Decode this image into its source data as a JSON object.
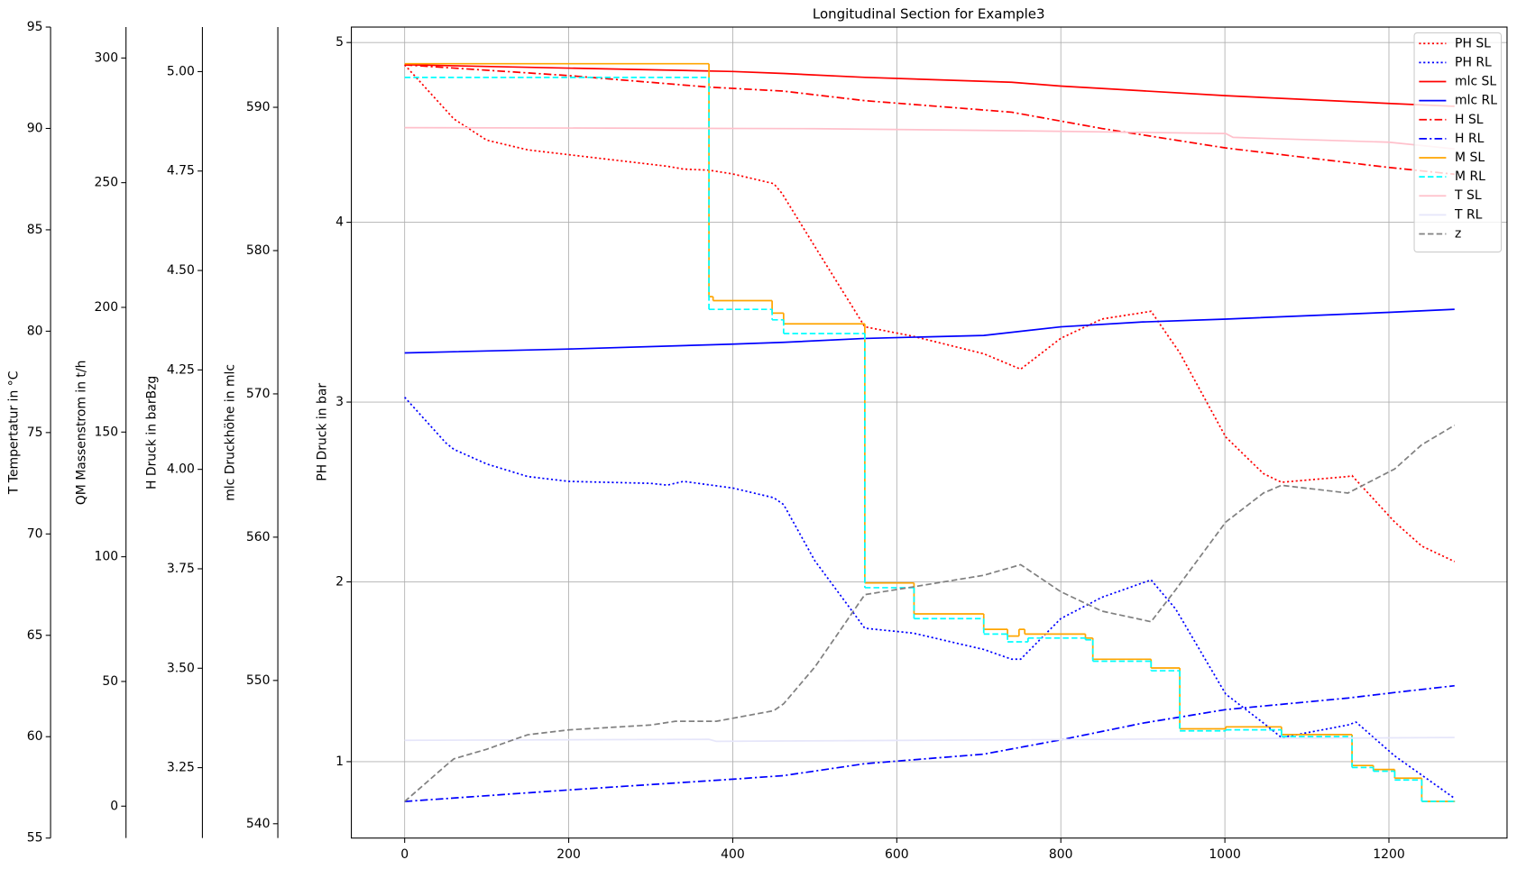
{
  "chart_data": {
    "type": "line",
    "title": "Longitudinal Section for Example3",
    "ylabel": "PH Druck in bar",
    "xlim": [
      -65,
      1344
    ],
    "xticks": [
      0,
      200,
      400,
      600,
      800,
      1000,
      1200
    ],
    "ylim": [
      0.575,
      5.086
    ],
    "yticks": [
      1,
      2,
      3,
      4,
      5
    ],
    "grid": true,
    "legend": "upper right",
    "extra_axes": [
      {
        "label": "T Tempertatur in °C",
        "ylim": [
          55,
          95
        ],
        "yticks": [
          55,
          60,
          65,
          70,
          75,
          80,
          85,
          90,
          95
        ]
      },
      {
        "label": "QM Massenstrom in t/h",
        "ylim": [
          -12.8,
          312.4
        ],
        "yticks": [
          0,
          50,
          100,
          150,
          200,
          250,
          300
        ]
      },
      {
        "label": "H Druck in barBzg",
        "ylim": [
          3.073,
          5.112
        ],
        "yticks": [
          3.25,
          {
            "value": 3.5,
            "label": "3.50"
          },
          3.75,
          {
            "value": 4,
            "label": "4.00"
          },
          4.25,
          {
            "value": 4.5,
            "label": "4.50"
          },
          4.75,
          {
            "value": 5,
            "label": "5.00"
          }
        ]
      },
      {
        "label": "mlc Druckhöhe in mlc",
        "ylim": [
          539,
          595.6
        ],
        "yticks": [
          540,
          550,
          560,
          570,
          580,
          590
        ]
      }
    ],
    "series": [
      {
        "name": "PH SL",
        "color": "#ff0000",
        "dash": "dotted",
        "x": [
          0,
          60,
          100,
          150,
          200,
          320,
          340,
          371,
          400,
          450,
          460,
          500,
          561,
          620,
          706,
          751,
          800,
          850,
          910,
          945,
          1001,
          1047,
          1069,
          1150,
          1155,
          1207,
          1240,
          1280
        ],
        "values": [
          4.876,
          4.575,
          4.457,
          4.403,
          4.376,
          4.312,
          4.296,
          4.29,
          4.269,
          4.215,
          4.161,
          3.866,
          3.419,
          3.366,
          3.269,
          3.183,
          3.355,
          3.462,
          3.505,
          3.274,
          2.806,
          2.602,
          2.554,
          2.586,
          2.591,
          2.333,
          2.199,
          2.113
        ]
      },
      {
        "name": "PH RL",
        "color": "#0000ff",
        "dash": "dotted",
        "x": [
          0,
          50,
          60,
          100,
          150,
          200,
          300,
          320,
          340,
          400,
          450,
          462,
          500,
          561,
          620,
          706,
          740,
          751,
          800,
          850,
          910,
          940,
          1001,
          1047,
          1069,
          1150,
          1160,
          1207,
          1280
        ],
        "values": [
          3.027,
          2.774,
          2.737,
          2.656,
          2.586,
          2.559,
          2.548,
          2.538,
          2.559,
          2.522,
          2.468,
          2.43,
          2.118,
          1.742,
          1.715,
          1.624,
          1.57,
          1.57,
          1.796,
          1.914,
          2.011,
          1.849,
          1.376,
          1.215,
          1.134,
          1.204,
          1.22,
          1.032,
          0.796
        ]
      },
      {
        "name": "mlc SL",
        "color": "#ff0000",
        "dash": "solid",
        "axis": 3,
        "x": [
          0,
          400,
          462,
          561,
          740,
          800,
          900,
          1001,
          1200,
          1280
        ],
        "values": [
          592.97,
          592.5,
          592.36,
          592.09,
          591.75,
          591.48,
          591.15,
          590.81,
          590.27,
          590.07
        ]
      },
      {
        "name": "mlc RL",
        "color": "#0000ff",
        "dash": "solid",
        "axis": 3,
        "x": [
          0,
          200,
          400,
          462,
          561,
          706,
          800,
          900,
          1001,
          1200,
          1280
        ],
        "values": [
          572.86,
          573.13,
          573.47,
          573.6,
          573.87,
          574.08,
          574.68,
          575.02,
          575.22,
          575.69,
          575.9
        ]
      },
      {
        "name": "H SL",
        "color": "#ff0000",
        "dash": "dashdot",
        "axis": 2,
        "x": [
          0,
          200,
          371,
          462,
          561,
          740,
          850,
          1001,
          1200,
          1280
        ],
        "values": [
          5.017,
          4.99,
          4.961,
          4.951,
          4.927,
          4.898,
          4.857,
          4.808,
          4.759,
          4.742
        ]
      },
      {
        "name": "H RL",
        "color": "#0000ff",
        "dash": "dashdot",
        "axis": 2,
        "x": [
          0,
          200,
          400,
          462,
          561,
          706,
          800,
          900,
          1001,
          1150,
          1207,
          1280
        ],
        "values": [
          3.165,
          3.194,
          3.221,
          3.23,
          3.26,
          3.284,
          3.32,
          3.362,
          3.396,
          3.425,
          3.439,
          3.456
        ]
      },
      {
        "name": "M SL",
        "color": "#ffa500",
        "dash": "solid",
        "axis": 1,
        "step": "post",
        "x": [
          0,
          371,
          376,
          448,
          462,
          561,
          621,
          706,
          735,
          749,
          756,
          830,
          839,
          910,
          945,
          1001,
          1069,
          1155,
          1181,
          1207,
          1240,
          1280
        ],
        "values": [
          297.7,
          204.3,
          202.7,
          197.7,
          193.4,
          89.5,
          77.1,
          70.9,
          68.2,
          70.9,
          69.0,
          67.4,
          58.9,
          55.4,
          31.0,
          31.8,
          28.7,
          16.3,
          14.7,
          11.2,
          1.9,
          1.9
        ]
      },
      {
        "name": "M RL",
        "color": "#00ffff",
        "dash": "dashed",
        "axis": 1,
        "step": "post",
        "x": [
          0,
          371,
          448,
          462,
          561,
          621,
          706,
          735,
          760,
          830,
          839,
          910,
          945,
          1001,
          1069,
          1155,
          1181,
          1207,
          1240,
          1280
        ],
        "values": [
          292.2,
          199.2,
          195.0,
          189.5,
          87.6,
          75.2,
          69.0,
          65.9,
          67.4,
          66.7,
          58.1,
          54.3,
          30.2,
          30.6,
          27.9,
          15.5,
          14.0,
          10.5,
          1.9,
          1.9
        ]
      },
      {
        "name": "T SL",
        "color": "#ffc0cb",
        "dash": "solid",
        "axis": 0,
        "x": [
          0,
          500,
          740,
          1001,
          1010,
          1200,
          1280
        ],
        "values": [
          90.04,
          89.99,
          89.89,
          89.75,
          89.56,
          89.32,
          88.99
        ]
      },
      {
        "name": "T RL",
        "color": "#e6e6fa",
        "dash": "solid",
        "axis": 0,
        "x": [
          0,
          371,
          380,
          1280
        ],
        "values": [
          59.82,
          59.87,
          59.77,
          59.96
        ]
      },
      {
        "name": "z",
        "color": "#808080",
        "dash": "dashed",
        "axis": 3,
        "x": [
          0,
          50,
          60,
          100,
          150,
          200,
          300,
          330,
          380,
          450,
          462,
          500,
          561,
          620,
          706,
          751,
          800,
          850,
          910,
          940,
          1001,
          1047,
          1069,
          1150,
          1207,
          1240,
          1280
        ],
        "values": [
          541.55,
          544.05,
          544.53,
          545.2,
          546.21,
          546.55,
          546.89,
          547.15,
          547.15,
          547.89,
          548.37,
          550.93,
          555.99,
          556.53,
          557.34,
          558.08,
          556.19,
          554.84,
          554.1,
          556.33,
          561.05,
          563.08,
          563.62,
          563.08,
          564.76,
          566.45,
          567.81
        ]
      }
    ]
  }
}
